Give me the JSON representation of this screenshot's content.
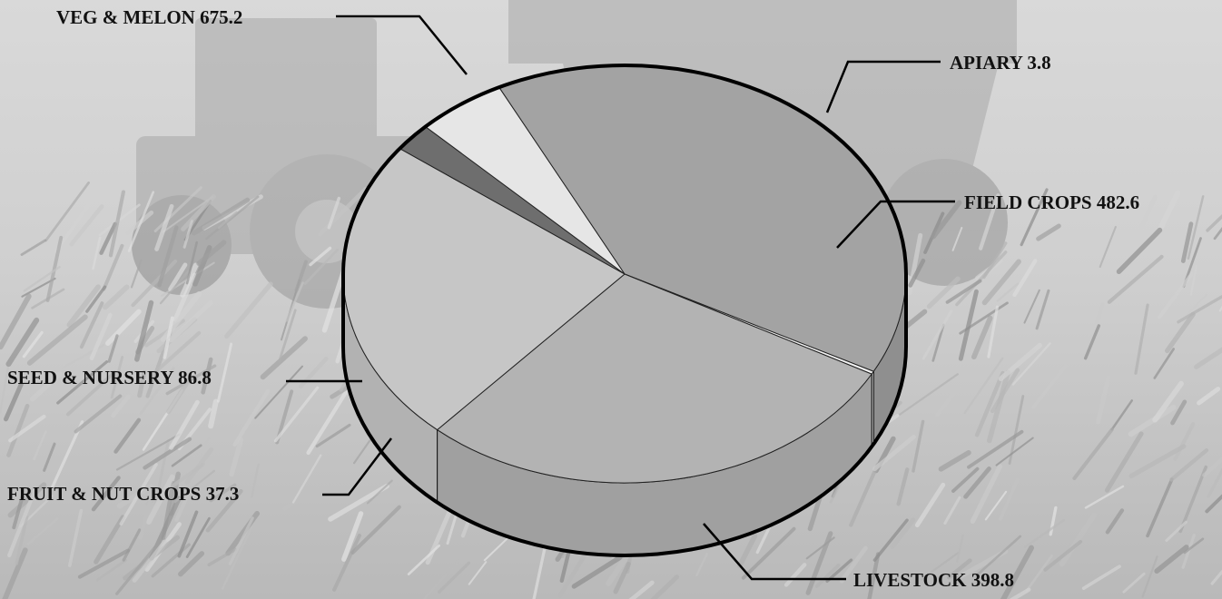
{
  "chart_data": {
    "type": "pie",
    "title": "",
    "style": "3d",
    "slices": [
      {
        "label": "VEG & MELON",
        "value": 675.2,
        "color": "#a3a3a3",
        "side": "#8f8f8f"
      },
      {
        "label": "APIARY",
        "value": 3.8,
        "color": "#f2f2f2",
        "side": "#dcdcdc"
      },
      {
        "label": "FIELD CROPS",
        "value": 482.6,
        "color": "#b3b3b3",
        "side": "#a0a0a0"
      },
      {
        "label": "LIVESTOCK",
        "value": 398.8,
        "color": "#c6c6c6",
        "side": "#b2b2b2"
      },
      {
        "label": "FRUIT & NUT CROPS",
        "value": 37.3,
        "color": "#6e6e6e",
        "side": "#4d4d4d"
      },
      {
        "label": "SEED & NURSERY",
        "value": 86.8,
        "color": "#e6e6e6",
        "side": "#d4d4d4"
      }
    ],
    "data_labels": [
      "VEG & MELON 675.2",
      "APIARY 3.8",
      "FIELD CROPS 482.6",
      "LIVESTOCK  398.8",
      "FRUIT & NUT CROPS 37.3",
      "SEED & NURSERY 86.8"
    ],
    "background": "photo of tractor and harvested corn field (grayscale)"
  }
}
